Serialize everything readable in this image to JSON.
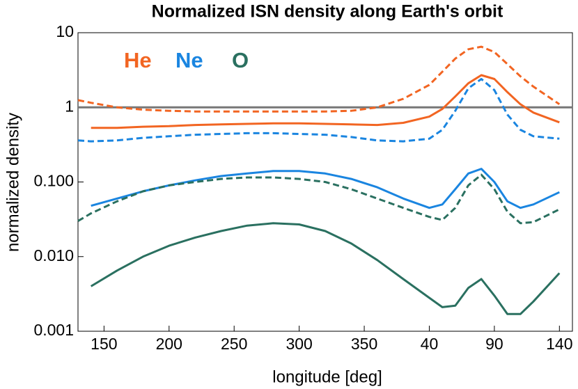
{
  "chart_data": {
    "type": "line",
    "title": "Normalized ISN density along Earth's orbit",
    "xlabel": "longitude [deg]",
    "ylabel": "normalized density",
    "log_y": true,
    "hline": 1,
    "hline_color": "#777777",
    "legend": [
      {
        "label": "He",
        "color": "#f26522"
      },
      {
        "label": "Ne",
        "color": "#1a85e0"
      },
      {
        "label": "O",
        "color": "#2a7060"
      }
    ],
    "x": [
      130,
      140,
      160,
      180,
      200,
      220,
      240,
      260,
      280,
      300,
      320,
      340,
      360,
      380,
      400,
      410,
      420,
      430,
      440,
      450,
      460,
      470,
      480,
      500
    ],
    "series": [
      {
        "color": "#f26522",
        "dashed": false,
        "values": [
          null,
          0.53,
          0.53,
          0.55,
          0.56,
          0.58,
          0.59,
          0.6,
          0.61,
          0.61,
          0.6,
          0.59,
          0.58,
          0.62,
          0.75,
          0.95,
          1.4,
          2.1,
          2.7,
          2.4,
          1.6,
          1.1,
          0.85,
          0.63
        ]
      },
      {
        "color": "#f26522",
        "dashed": true,
        "values": [
          1.25,
          1.15,
          1.0,
          0.93,
          0.9,
          0.88,
          0.88,
          0.88,
          0.88,
          0.88,
          0.88,
          0.9,
          1.0,
          1.3,
          2.0,
          3.0,
          4.5,
          6.0,
          6.5,
          5.5,
          3.8,
          2.6,
          1.9,
          1.1
        ]
      },
      {
        "color": "#1a85e0",
        "dashed": false,
        "values": [
          null,
          0.048,
          0.06,
          0.075,
          0.09,
          0.105,
          0.12,
          0.13,
          0.14,
          0.14,
          0.13,
          0.11,
          0.085,
          0.06,
          0.045,
          0.05,
          0.08,
          0.13,
          0.15,
          0.1,
          0.055,
          0.045,
          0.05,
          0.073
        ]
      },
      {
        "color": "#1a85e0",
        "dashed": true,
        "values": [
          0.36,
          0.35,
          0.36,
          0.39,
          0.41,
          0.43,
          0.44,
          0.45,
          0.45,
          0.44,
          0.43,
          0.4,
          0.36,
          0.35,
          0.38,
          0.5,
          0.9,
          1.8,
          2.4,
          1.7,
          0.8,
          0.5,
          0.41,
          0.38
        ]
      },
      {
        "color": "#2a7060",
        "dashed": false,
        "values": [
          null,
          0.004,
          0.0065,
          0.01,
          0.014,
          0.018,
          0.022,
          0.026,
          0.028,
          0.027,
          0.022,
          0.015,
          0.009,
          0.005,
          0.0028,
          0.0021,
          0.0022,
          0.0038,
          0.005,
          0.003,
          0.0017,
          0.0017,
          0.0025,
          0.006
        ]
      },
      {
        "color": "#2a7060",
        "dashed": true,
        "values": [
          0.03,
          0.038,
          0.055,
          0.075,
          0.09,
          0.1,
          0.11,
          0.115,
          0.115,
          0.11,
          0.1,
          0.08,
          0.06,
          0.045,
          0.034,
          0.031,
          0.045,
          0.09,
          0.125,
          0.08,
          0.04,
          0.028,
          0.029,
          0.043
        ]
      }
    ],
    "xlim": [
      130,
      510
    ],
    "xticks": [
      150,
      200,
      250,
      300,
      350,
      {
        "value": 400,
        "label": "40"
      },
      {
        "value": 450,
        "label": "90"
      },
      {
        "value": 500,
        "label": "140"
      }
    ],
    "ylim": [
      0.001,
      10
    ],
    "yticks": [
      10,
      1,
      {
        "value": 0.1,
        "label": "0.100"
      },
      {
        "value": 0.01,
        "label": "0.010"
      },
      {
        "value": 0.001,
        "label": "0.001"
      }
    ]
  }
}
